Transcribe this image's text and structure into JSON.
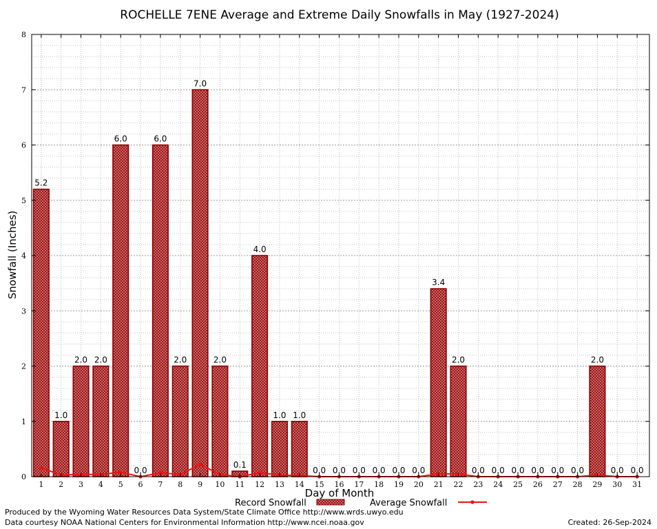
{
  "chart_data": {
    "type": "bar",
    "title": "ROCHELLE 7ENE Average and Extreme Daily Snowfalls in May (1927-2024)",
    "xlabel": "Day of Month",
    "ylabel": "Snowfall (Inches)",
    "ylim": [
      0,
      8
    ],
    "yticks": [
      "0",
      "1",
      "2",
      "3",
      "4",
      "5",
      "6",
      "7",
      "8"
    ],
    "categories": [
      "1",
      "2",
      "3",
      "4",
      "5",
      "6",
      "7",
      "8",
      "9",
      "10",
      "11",
      "12",
      "13",
      "14",
      "15",
      "16",
      "17",
      "18",
      "19",
      "20",
      "21",
      "22",
      "23",
      "24",
      "25",
      "26",
      "27",
      "28",
      "29",
      "30",
      "31"
    ],
    "grid": true,
    "legend_position": "bottom-center",
    "series": [
      {
        "name": "Record Snowfall",
        "kind": "bar",
        "color": "#8b0000",
        "fill": "#cc6666",
        "values": [
          5.2,
          1.0,
          2.0,
          2.0,
          6.0,
          0.0,
          6.0,
          2.0,
          7.0,
          2.0,
          0.1,
          4.0,
          1.0,
          1.0,
          0.0,
          0.0,
          0.0,
          0.0,
          0.0,
          0.0,
          3.4,
          2.0,
          0.0,
          0.0,
          0.0,
          0.0,
          0.0,
          0.0,
          2.0,
          0.0,
          0.0
        ],
        "labels": [
          "5.2",
          "1.0",
          "2.0",
          "2.0",
          "6.0",
          "0.0",
          "6.0",
          "2.0",
          "7.0",
          "2.0",
          "0.1",
          "4.0",
          "1.0",
          "1.0",
          "0.0",
          "0.0",
          "0.0",
          "0.0",
          "0.0",
          "0.0",
          "3.4",
          "2.0",
          "0.0",
          "0.0",
          "0.0",
          "0.0",
          "0.0",
          "0.0",
          "2.0",
          "0.0",
          "0.0"
        ]
      },
      {
        "name": "Average Snowfall",
        "kind": "line",
        "color": "#ee1111",
        "values": [
          0.16,
          0.03,
          0.04,
          0.04,
          0.08,
          0.0,
          0.07,
          0.04,
          0.22,
          0.04,
          0.0,
          0.07,
          0.03,
          0.02,
          0.0,
          0.0,
          0.0,
          0.0,
          0.0,
          0.0,
          0.05,
          0.05,
          0.0,
          0.0,
          0.0,
          0.0,
          0.0,
          0.0,
          0.03,
          0.0,
          0.0
        ]
      }
    ]
  },
  "footer": {
    "produced_by": "Produced by the Wyoming Water Resources Data System/State Climate Office http://www.wrds.uwyo.edu",
    "courtesy": "Data courtesy NOAA National Centers for Environmental Information http://www.ncei.noaa.gov",
    "created": "Created: 26-Sep-2024"
  }
}
